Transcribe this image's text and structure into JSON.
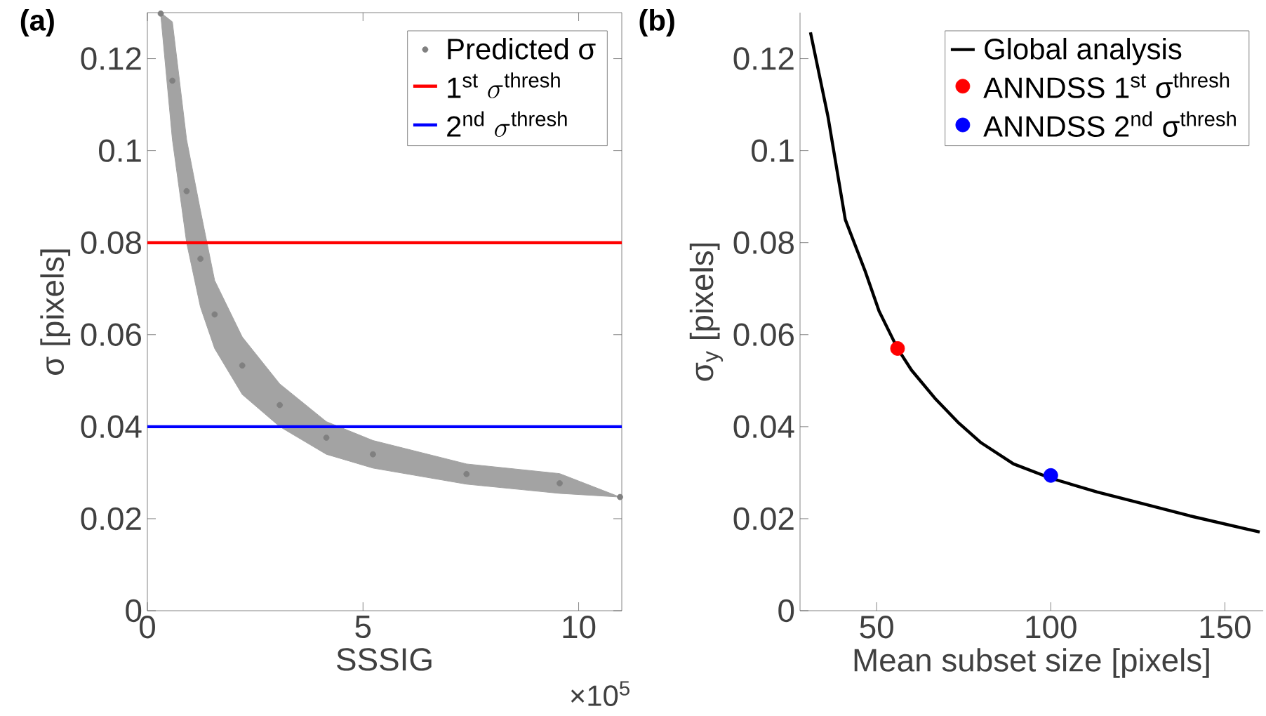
{
  "chart_data": [
    {
      "type": "scatter",
      "title": "(a)",
      "xlabel": "SSSIG",
      "ylabel": "σ [pixels]",
      "annotations": [
        "×10$^{5}$"
      ],
      "xlim": [
        0,
        11
      ],
      "ylim": [
        0,
        0.13
      ],
      "xticks": [
        0,
        5,
        10
      ],
      "yticks": [
        0,
        0.02,
        0.04,
        0.06,
        0.08,
        0.1,
        0.12
      ],
      "series": [
        {
          "name": "Predicted σ",
          "color": "#808080",
          "marker": "circle",
          "x": [
            0.31,
            0.58,
            0.91,
            1.23,
            1.56,
            2.2,
            3.07,
            4.15,
            5.23,
            7.4,
            9.56,
            10.96
          ],
          "values": [
            0.1298,
            0.1152,
            0.0912,
            0.0765,
            0.0644,
            0.0533,
            0.0447,
            0.0376,
            0.034,
            0.0297,
            0.0277,
            0.0247
          ],
          "upper": [
            0.13,
            0.128,
            0.1024,
            0.087,
            0.0718,
            0.0595,
            0.0493,
            0.0411,
            0.037,
            0.0319,
            0.0298,
            0.0247
          ],
          "lower": [
            0.1295,
            0.1024,
            0.08,
            0.066,
            0.057,
            0.047,
            0.04,
            0.034,
            0.031,
            0.0275,
            0.0255,
            0.0247
          ]
        }
      ],
      "ref_lines": [
        {
          "axis": "y",
          "value": 0.08,
          "label": "\\mathrm{1^{st}}\\ \\sigma^{\\mathrm{thresh}}",
          "color": "#ff0000"
        },
        {
          "axis": "y",
          "value": 0.04,
          "label": "\\mathrm{2^{nd}}\\ \\sigma^{\\mathrm{thresh}}",
          "color": "#0000ff"
        }
      ],
      "legend": "top right",
      "grid": false
    },
    {
      "type": "line",
      "title": "(b)",
      "xlabel": "Mean subset size [pixels]",
      "ylabel": "σ$_{y}$ [pixels]",
      "xlim": [
        28,
        161
      ],
      "ylim": [
        0,
        0.13
      ],
      "xticks": [
        50,
        100,
        150
      ],
      "yticks": [
        0,
        0.02,
        0.04,
        0.06,
        0.08,
        0.1,
        0.12
      ],
      "series": [
        {
          "name": "Global analysis",
          "type": "line",
          "color": "#000000",
          "marker": "none",
          "x": [
            31,
            36,
            41,
            46.7,
            50.7,
            56,
            60,
            66.7,
            73.3,
            80,
            89.3,
            100,
            113.3,
            126.7,
            140,
            160
          ],
          "values": [
            0.1257,
            0.1075,
            0.085,
            0.0738,
            0.0651,
            0.057,
            0.0523,
            0.0462,
            0.041,
            0.0365,
            0.0319,
            0.0288,
            0.0258,
            0.0232,
            0.0206,
            0.0171
          ]
        },
        {
          "name": "ANNDSS 1$^{st}$ σ$^{thresh}$",
          "type": "scatter",
          "color": "#ff0000",
          "marker": "circle",
          "x": [
            56
          ],
          "values": [
            0.057
          ]
        },
        {
          "name": "ANNDSS 2$^{nd}$ σ$^{thresh}$",
          "type": "scatter",
          "color": "#0000ff",
          "marker": "circle",
          "x": [
            100
          ],
          "values": [
            0.0294
          ]
        }
      ],
      "legend": "top right",
      "grid": false
    }
  ]
}
